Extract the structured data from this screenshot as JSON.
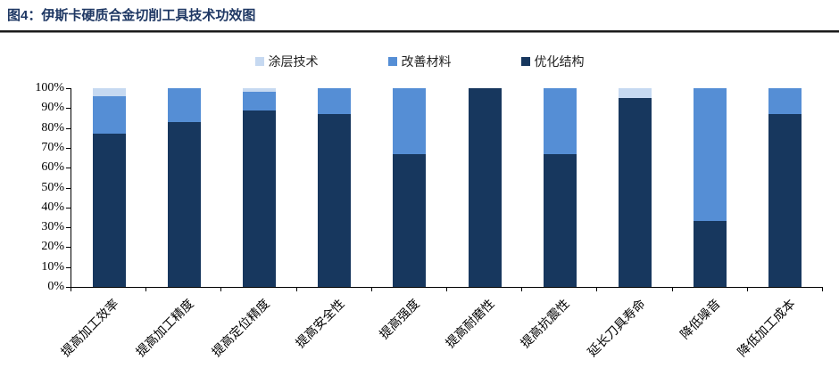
{
  "figure": {
    "title": "图4：伊斯卡硬质合金切削工具技术功效图"
  },
  "chart_data": {
    "type": "bar",
    "stacked": true,
    "title": "伊斯卡硬质合金切削工具技术功效图",
    "categories": [
      "提高加工效率",
      "提高加工精度",
      "提高定位精度",
      "提高安全性",
      "提高强度",
      "提高耐磨性",
      "提高抗震性",
      "延长刀具寿命",
      "降低噪音",
      "降低加工成本"
    ],
    "series": [
      {
        "name": "优化结构",
        "color": "#17375E",
        "values": [
          77,
          83,
          89,
          87,
          67,
          100,
          67,
          95,
          33,
          87
        ]
      },
      {
        "name": "改善材料",
        "color": "#558ED5",
        "values": [
          19,
          17,
          9,
          13,
          33,
          0,
          33,
          0,
          67,
          13
        ]
      },
      {
        "name": "涂层技术",
        "color": "#C6D9F1",
        "values": [
          4,
          0,
          2,
          0,
          0,
          0,
          0,
          5,
          0,
          0
        ]
      }
    ],
    "legend": [
      "涂层技术",
      "改善材料",
      "优化结构"
    ],
    "legend_position": "top",
    "grid": false,
    "ylim": [
      0,
      100
    ],
    "yticks": [
      "0%",
      "10%",
      "20%",
      "30%",
      "40%",
      "50%",
      "60%",
      "70%",
      "80%",
      "90%",
      "100%"
    ],
    "xlabel": "",
    "ylabel": "",
    "axis_color": "#000000",
    "title_color": "#1F3864"
  }
}
